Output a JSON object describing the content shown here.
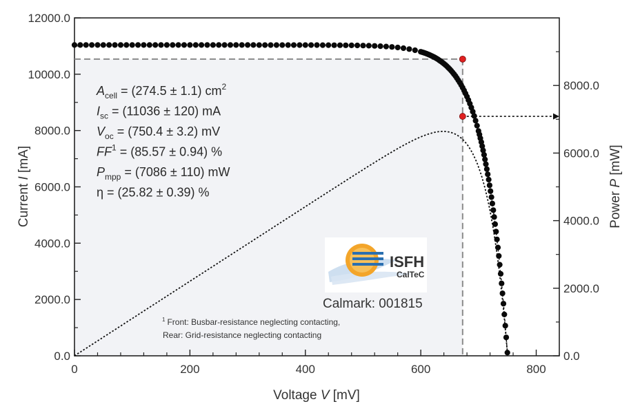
{
  "chart_data": {
    "type": "scatter",
    "xlabel_prefix": "Voltage ",
    "xlabel_var": "V",
    "xlabel_unit": " [mV]",
    "ylabel_prefix": "Current ",
    "ylabel_var": "I",
    "ylabel_unit": " [mA]",
    "y2label_prefix": "Power ",
    "y2label_var": "P",
    "y2label_unit": " [mW]",
    "xlim": [
      0,
      840
    ],
    "ylim": [
      0,
      12000
    ],
    "y2lim": [
      0,
      10000
    ],
    "x_ticks": [
      {
        "value": 0,
        "label": "0"
      },
      {
        "value": 200,
        "label": "200"
      },
      {
        "value": 400,
        "label": "400"
      },
      {
        "value": 600,
        "label": "600"
      },
      {
        "value": 800,
        "label": "800"
      }
    ],
    "y_ticks": [
      {
        "value": 0,
        "label": "0.0"
      },
      {
        "value": 2000,
        "label": "2000.0"
      },
      {
        "value": 4000,
        "label": "4000.0"
      },
      {
        "value": 6000,
        "label": "6000.0"
      },
      {
        "value": 8000,
        "label": "8000.0"
      },
      {
        "value": 10000,
        "label": "10000.0"
      },
      {
        "value": 12000,
        "label": "12000.0"
      }
    ],
    "y2_ticks": [
      {
        "value": 0,
        "label": "0.0"
      },
      {
        "value": 2000,
        "label": "2000.0"
      },
      {
        "value": 4000,
        "label": "4000.0"
      },
      {
        "value": 6000,
        "label": "6000.0"
      },
      {
        "value": 8000,
        "label": "8000.0"
      }
    ],
    "iv_curve": {
      "voc": 750.4,
      "isc": 11036,
      "diode_n_vt": 39.2,
      "flat_start": 0,
      "flat_end": 600,
      "flat_step": 10,
      "mid_start": 600,
      "mid_end": 700,
      "mid_step": 2.5,
      "steep_start": 700,
      "steep_end": 749,
      "steep_step": 1.6,
      "last_point": 750
    },
    "mpp": {
      "v_mpp": 672.5,
      "i_mpp": 10537,
      "p_mpp": 7086
    },
    "parameters": [
      {
        "sym": "A",
        "sub": "cell",
        "sup": "",
        "italic": true,
        "rest": " = (274.5 ± 1.1) cm",
        "rest_sup": "2"
      },
      {
        "sym": "I",
        "sub": "sc",
        "sup": "",
        "italic": true,
        "rest": " = (11036 ± 120) mA",
        "rest_sup": ""
      },
      {
        "sym": "V",
        "sub": "oc",
        "sup": "",
        "italic": true,
        "rest": " = (750.4 ± 3.2) mV",
        "rest_sup": ""
      },
      {
        "sym": "FF",
        "sub": "",
        "sup": "1",
        "italic": true,
        "rest": " = (85.57 ± 0.94) %",
        "rest_sup": ""
      },
      {
        "sym": "P",
        "sub": "mpp",
        "sup": "",
        "italic": true,
        "rest": " = (7086 ± 110) mW",
        "rest_sup": ""
      },
      {
        "sym": "η",
        "sub": "",
        "sup": "",
        "italic": false,
        "rest": " = (25.82 ± 0.39) %",
        "rest_sup": ""
      }
    ],
    "footnote_mark": "1",
    "footnote_line1": "Front: Busbar-resistance neglecting contacting,",
    "footnote_line2": "Rear: Grid-resistance neglecting contacting",
    "logo_line1": "ISFH",
    "logo_line2": "CalTeC",
    "calmark": "Calmark: 001815",
    "colors": {
      "points": "#0a0a0a",
      "mpp_point": "#e02020",
      "guide": "#8a8a8a",
      "shade": "#f2f3f6",
      "axis": "#222222",
      "logo_blue": "#2f7fc0",
      "logo_orange": "#f3a52a"
    }
  }
}
